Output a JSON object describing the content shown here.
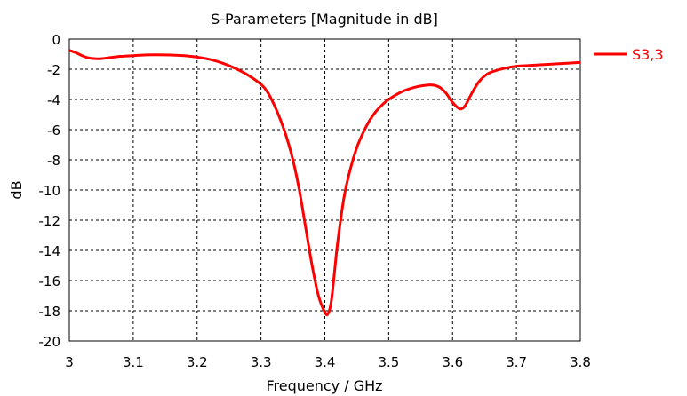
{
  "chart_data": {
    "type": "line",
    "title": "S-Parameters [Magnitude in dB]",
    "xlabel": "Frequency / GHz",
    "ylabel": "dB",
    "xlim": [
      3.0,
      3.8
    ],
    "ylim": [
      -20,
      0
    ],
    "x_ticks": [
      3.0,
      3.1,
      3.2,
      3.3,
      3.4,
      3.5,
      3.6,
      3.7,
      3.8
    ],
    "x_tick_labels": [
      "3",
      "3.1",
      "3.2",
      "3.3",
      "3.4",
      "3.5",
      "3.6",
      "3.7",
      "3.8"
    ],
    "y_ticks": [
      0,
      -2,
      -4,
      -6,
      -8,
      -10,
      -12,
      -14,
      -16,
      -18,
      -20
    ],
    "y_tick_labels": [
      "0",
      "-2",
      "-4",
      "-6",
      "-8",
      "-10",
      "-12",
      "-14",
      "-16",
      "-18",
      "-20"
    ],
    "grid": true,
    "legend_position": "outside-top-right",
    "series": [
      {
        "name": "S3,3",
        "color": "#ff0000",
        "x": [
          3.0,
          3.01,
          3.02,
          3.03,
          3.04,
          3.05,
          3.06,
          3.08,
          3.1,
          3.12,
          3.15,
          3.18,
          3.2,
          3.22,
          3.24,
          3.26,
          3.28,
          3.3,
          3.31,
          3.32,
          3.33,
          3.34,
          3.35,
          3.36,
          3.37,
          3.38,
          3.39,
          3.4,
          3.405,
          3.41,
          3.415,
          3.42,
          3.43,
          3.44,
          3.45,
          3.46,
          3.47,
          3.48,
          3.49,
          3.5,
          3.52,
          3.54,
          3.56,
          3.57,
          3.58,
          3.59,
          3.6,
          3.61,
          3.615,
          3.62,
          3.63,
          3.64,
          3.65,
          3.66,
          3.68,
          3.7,
          3.72,
          3.74,
          3.76,
          3.78,
          3.8
        ],
        "y": [
          -0.75,
          -0.9,
          -1.1,
          -1.25,
          -1.3,
          -1.3,
          -1.25,
          -1.15,
          -1.1,
          -1.05,
          -1.05,
          -1.1,
          -1.2,
          -1.35,
          -1.6,
          -1.95,
          -2.4,
          -3.0,
          -3.5,
          -4.3,
          -5.3,
          -6.5,
          -8.0,
          -10.0,
          -12.5,
          -15.0,
          -17.0,
          -18.1,
          -18.2,
          -17.4,
          -15.5,
          -13.5,
          -10.5,
          -8.6,
          -7.2,
          -6.2,
          -5.4,
          -4.8,
          -4.35,
          -4.0,
          -3.5,
          -3.2,
          -3.05,
          -3.05,
          -3.2,
          -3.6,
          -4.2,
          -4.6,
          -4.6,
          -4.4,
          -3.6,
          -2.9,
          -2.45,
          -2.2,
          -1.95,
          -1.8,
          -1.75,
          -1.7,
          -1.65,
          -1.6,
          -1.55
        ]
      }
    ]
  }
}
